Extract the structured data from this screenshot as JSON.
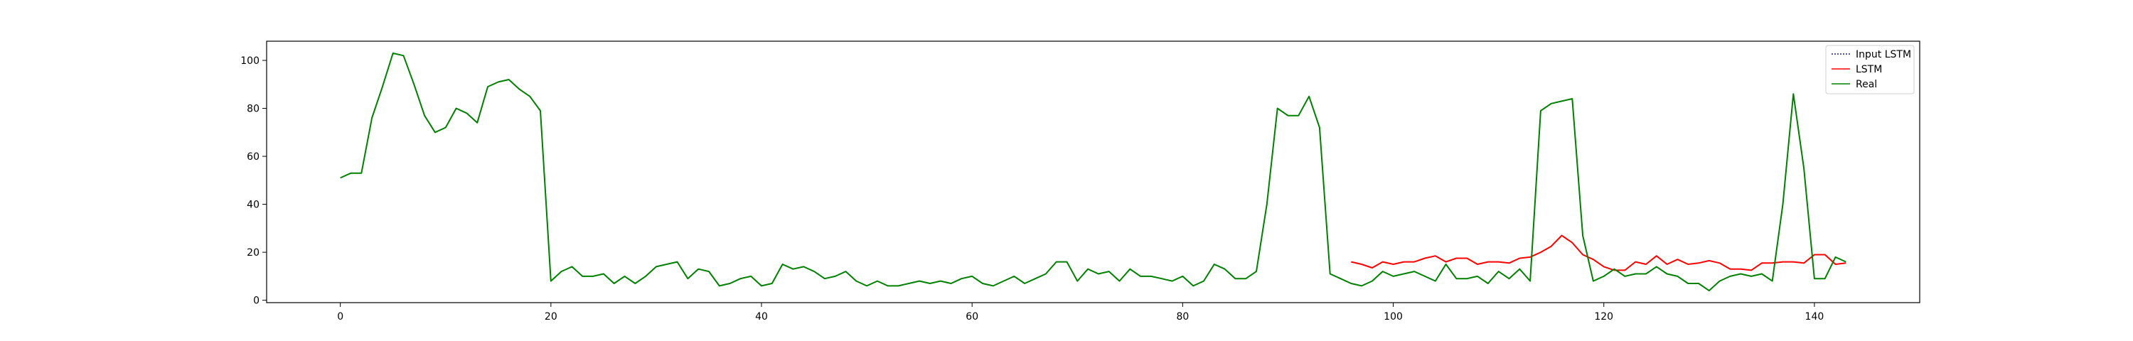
{
  "chart_data": {
    "type": "line",
    "title": "",
    "xlabel": "",
    "ylabel": "",
    "xlim": [
      -7,
      150
    ],
    "ylim": [
      -1,
      108
    ],
    "xticks": [
      0,
      20,
      40,
      60,
      80,
      100,
      120,
      140
    ],
    "yticks": [
      0,
      20,
      40,
      60,
      80,
      100
    ],
    "grid": false,
    "legend_position": "top-right",
    "series": [
      {
        "name": "Input LSTM",
        "color": "#1f1f7a",
        "style": "dotted",
        "x": [],
        "values": []
      },
      {
        "name": "LSTM",
        "color": "#ff0000",
        "style": "solid",
        "x": [
          96,
          97,
          98,
          99,
          100,
          101,
          102,
          103,
          104,
          105,
          106,
          107,
          108,
          109,
          110,
          111,
          112,
          113,
          114,
          115,
          116,
          117,
          118,
          119,
          120,
          121,
          122,
          123,
          124,
          125,
          126,
          127,
          128,
          129,
          130,
          131,
          132,
          133,
          134,
          135,
          136,
          137,
          138,
          139,
          140,
          141,
          142,
          143
        ],
        "values": [
          16,
          15,
          13.5,
          16,
          15,
          16,
          16,
          17.5,
          18.5,
          16,
          17.5,
          17.5,
          15,
          16,
          16,
          15.5,
          17.5,
          18,
          20,
          22.5,
          27,
          24,
          19,
          17,
          14,
          12.5,
          12.5,
          16,
          15,
          18.5,
          15,
          17,
          15,
          15.5,
          16.5,
          15.5,
          13,
          13,
          12.5,
          15.5,
          15.5,
          16,
          16,
          15.5,
          19,
          19,
          15,
          15.5
        ]
      },
      {
        "name": "Real",
        "color": "#008000",
        "style": "solid",
        "x": [
          0,
          1,
          2,
          3,
          4,
          5,
          6,
          7,
          8,
          9,
          10,
          11,
          12,
          13,
          14,
          15,
          16,
          17,
          18,
          19,
          20,
          21,
          22,
          23,
          24,
          25,
          26,
          27,
          28,
          29,
          30,
          31,
          32,
          33,
          34,
          35,
          36,
          37,
          38,
          39,
          40,
          41,
          42,
          43,
          44,
          45,
          46,
          47,
          48,
          49,
          50,
          51,
          52,
          53,
          54,
          55,
          56,
          57,
          58,
          59,
          60,
          61,
          62,
          63,
          64,
          65,
          66,
          67,
          68,
          69,
          70,
          71,
          72,
          73,
          74,
          75,
          76,
          77,
          78,
          79,
          80,
          81,
          82,
          83,
          84,
          85,
          86,
          87,
          88,
          89,
          90,
          91,
          92,
          93,
          94,
          95,
          96,
          97,
          98,
          99,
          100,
          101,
          102,
          103,
          104,
          105,
          106,
          107,
          108,
          109,
          110,
          111,
          112,
          113,
          114,
          115,
          116,
          117,
          118,
          119,
          120,
          121,
          122,
          123,
          124,
          125,
          126,
          127,
          128,
          129,
          130,
          131,
          132,
          133,
          134,
          135,
          136,
          137,
          138,
          139,
          140,
          141,
          142,
          143
        ],
        "values": [
          51,
          53,
          53,
          76,
          89,
          103,
          102,
          90,
          77,
          70,
          72,
          80,
          78,
          74,
          89,
          91,
          92,
          88,
          85,
          79,
          8,
          12,
          14,
          10,
          10,
          11,
          7,
          10,
          7,
          10,
          14,
          15,
          16,
          9,
          13,
          12,
          6,
          7,
          9,
          10,
          6,
          7,
          15,
          13,
          14,
          12,
          9,
          10,
          12,
          8,
          6,
          8,
          6,
          6,
          7,
          8,
          7,
          8,
          7,
          9,
          10,
          7,
          6,
          8,
          10,
          7,
          9,
          11,
          16,
          16,
          8,
          13,
          11,
          12,
          8,
          13,
          10,
          10,
          9,
          8,
          10,
          6,
          8,
          15,
          13,
          9,
          9,
          12,
          40,
          80,
          77,
          77,
          85,
          72,
          11,
          9,
          7,
          6,
          8,
          12,
          10,
          11,
          12,
          10,
          8,
          15,
          9,
          9,
          10,
          7,
          12,
          9,
          13,
          8,
          79,
          82,
          83,
          84,
          27,
          8,
          10,
          13,
          10,
          11,
          11,
          14,
          11,
          10,
          7,
          7,
          4,
          8,
          10,
          11,
          10,
          11,
          8,
          40,
          86,
          55,
          9,
          9,
          18,
          16
        ]
      }
    ]
  }
}
